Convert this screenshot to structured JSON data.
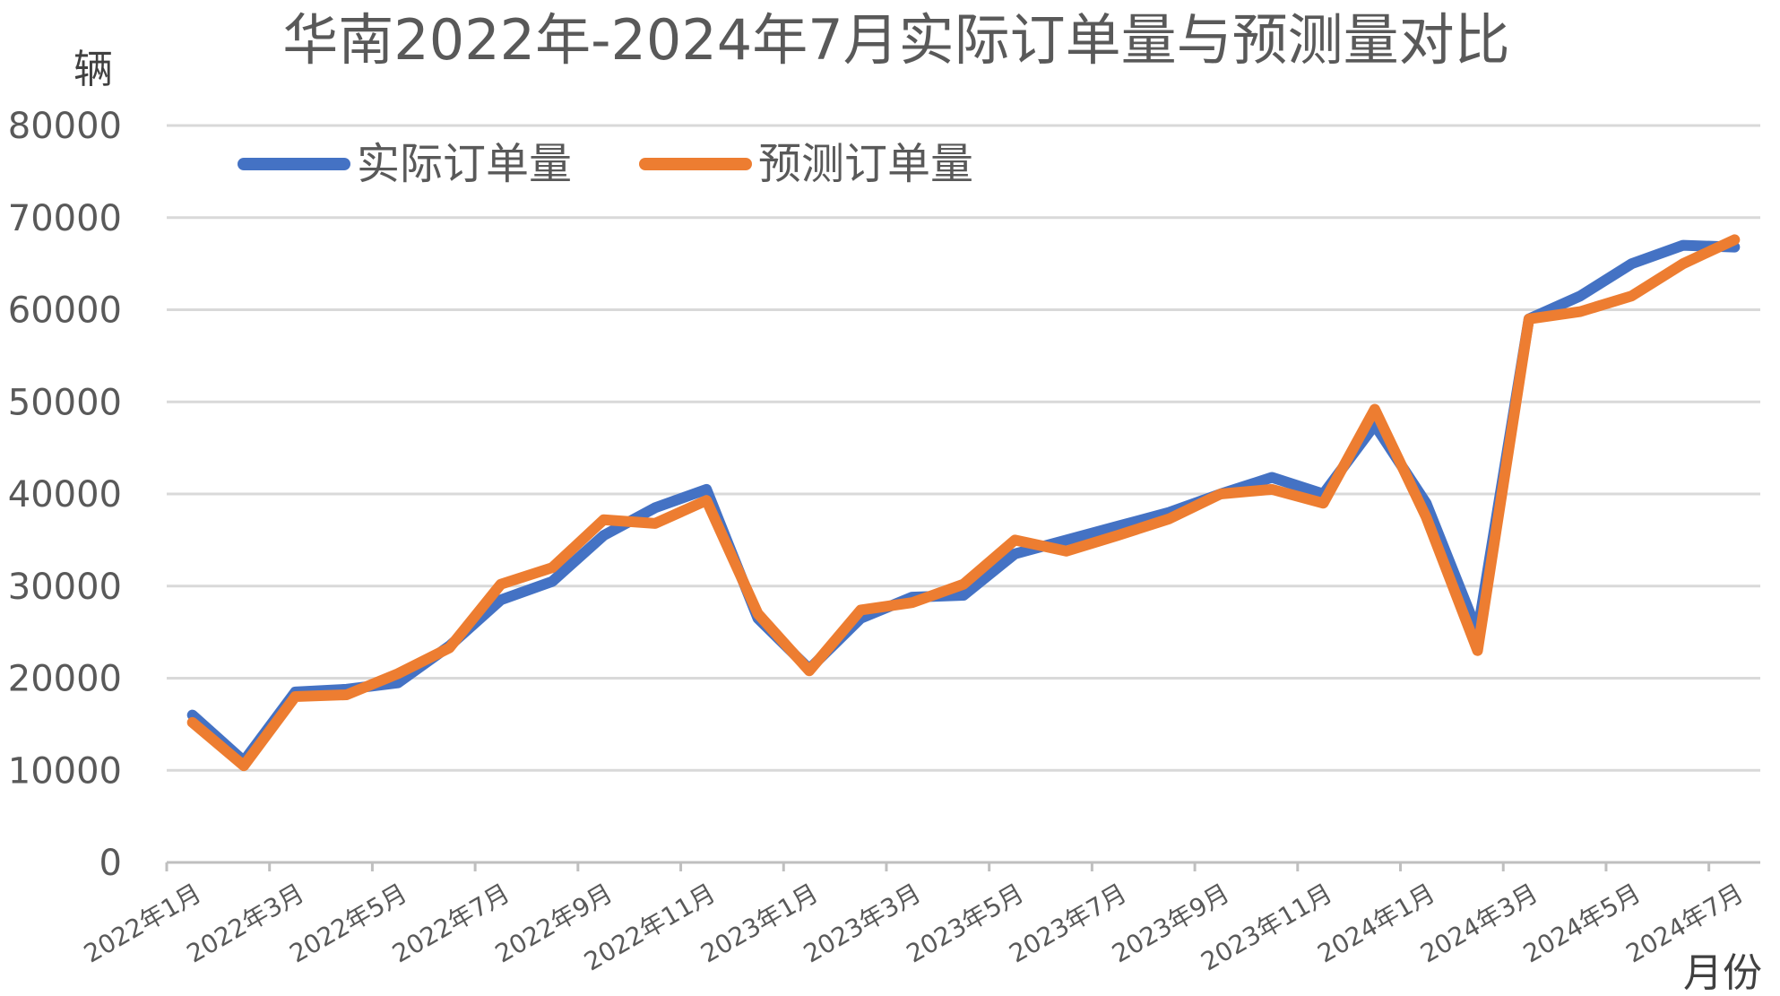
{
  "chart_data": {
    "type": "line",
    "title": "华南2022年-2024年7月实际订单量与预测量对比",
    "ylabel": "辆",
    "xlabel": "月份",
    "ylim": [
      0,
      80000
    ],
    "yticks": [
      0,
      10000,
      20000,
      30000,
      40000,
      50000,
      60000,
      70000,
      80000
    ],
    "grid": true,
    "legend_position": "top-left",
    "x": [
      "2022年1月",
      "2022年2月",
      "2022年3月",
      "2022年4月",
      "2022年5月",
      "2022年6月",
      "2022年7月",
      "2022年8月",
      "2022年9月",
      "2022年10月",
      "2022年11月",
      "2022年12月",
      "2023年1月",
      "2023年2月",
      "2023年3月",
      "2023年4月",
      "2023年5月",
      "2023年6月",
      "2023年7月",
      "2023年8月",
      "2023年9月",
      "2023年10月",
      "2023年11月",
      "2023年12月",
      "2024年1月",
      "2024年2月",
      "2024年3月",
      "2024年4月",
      "2024年5月",
      "2024年6月",
      "2024年7月"
    ],
    "x_tick_labels": [
      "2022年1月",
      "2022年3月",
      "2022年5月",
      "2022年7月",
      "2022年9月",
      "2022年11月",
      "2023年1月",
      "2023年3月",
      "2023年5月",
      "2023年7月",
      "2023年9月",
      "2023年11月",
      "2024年1月",
      "2024年3月",
      "2024年5月",
      "2024年7月"
    ],
    "series": [
      {
        "name": "实际订单量",
        "color": "#4472C4",
        "values": [
          16000,
          11000,
          18500,
          18800,
          19500,
          23500,
          28500,
          30500,
          35500,
          38500,
          40500,
          26500,
          21000,
          26500,
          28800,
          29000,
          33500,
          35000,
          36500,
          38000,
          40000,
          41800,
          40000,
          47500,
          39000,
          25000,
          59000,
          61500,
          65000,
          67000,
          66800
        ]
      },
      {
        "name": "预测订单量",
        "color": "#ED7D31",
        "values": [
          15200,
          10500,
          18000,
          18200,
          20500,
          23300,
          30200,
          32000,
          37200,
          36800,
          39300,
          27000,
          20800,
          27400,
          28200,
          30200,
          35000,
          33800,
          35500,
          37300,
          40000,
          40500,
          39000,
          49200,
          37500,
          23000,
          59000,
          59800,
          61500,
          65000,
          67600
        ]
      }
    ]
  }
}
